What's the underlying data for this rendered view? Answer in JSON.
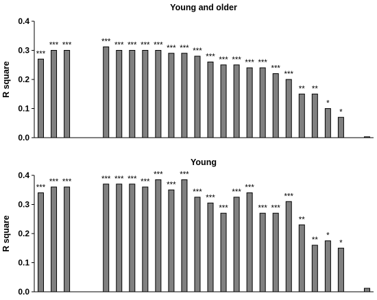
{
  "chart_data": [
    {
      "type": "bar",
      "title": "Young and older",
      "ylabel": "R square",
      "xlabel": "",
      "ylim": [
        0,
        0.4
      ],
      "yticks": [
        "0.0",
        "0.1",
        "0.2",
        "0.3",
        "0.4"
      ],
      "bar_color": "#808080",
      "grid": false,
      "values": [
        0.27,
        0.3,
        0.3,
        null,
        null,
        0.312,
        0.3,
        0.3,
        0.3,
        0.3,
        0.29,
        0.29,
        0.28,
        0.26,
        0.25,
        0.25,
        0.24,
        0.24,
        0.22,
        0.2,
        0.15,
        0.15,
        0.1,
        0.07,
        null,
        0.003
      ],
      "significance": [
        "***",
        "***",
        "***",
        "",
        "",
        "***",
        "***",
        "***",
        "***",
        "***",
        "***",
        "***",
        "***",
        "***",
        "***",
        "***",
        "***",
        "***",
        "***",
        "***",
        "**",
        "**",
        "*",
        "*",
        "",
        ""
      ]
    },
    {
      "type": "bar",
      "title": "Young",
      "ylabel": "R square",
      "xlabel": "",
      "ylim": [
        0,
        0.4
      ],
      "yticks": [
        "0.0",
        "0.1",
        "0.2",
        "0.3",
        "0.4"
      ],
      "bar_color": "#808080",
      "grid": false,
      "values": [
        0.34,
        0.36,
        0.36,
        null,
        null,
        0.37,
        0.37,
        0.37,
        0.36,
        0.385,
        0.35,
        0.385,
        0.325,
        0.305,
        0.27,
        0.325,
        0.34,
        0.27,
        0.27,
        0.31,
        0.23,
        0.16,
        0.175,
        0.15,
        null,
        0.012
      ],
      "significance": [
        "***",
        "***",
        "***",
        "",
        "",
        "***",
        "***",
        "***",
        "***",
        "***",
        "***",
        "***",
        "***",
        "***",
        "***",
        "***",
        "***",
        "***",
        "***",
        "***",
        "**",
        "**",
        "*",
        "*",
        "",
        ""
      ]
    }
  ]
}
